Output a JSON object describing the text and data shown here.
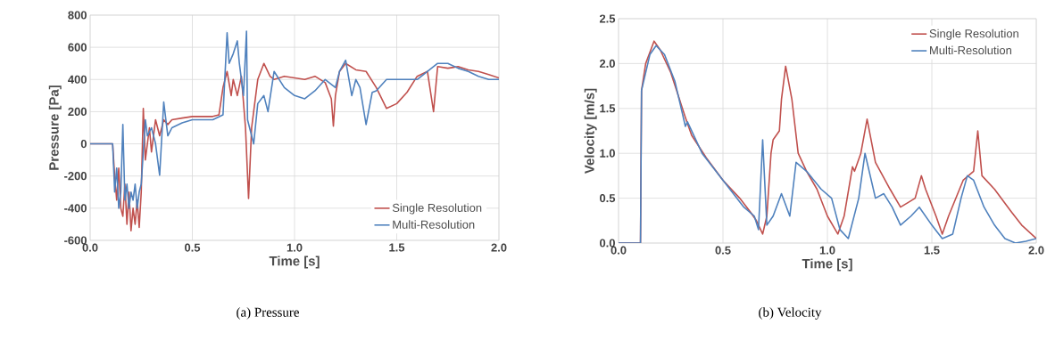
{
  "chart_data": [
    {
      "type": "line",
      "xlabel": "Time [s]",
      "ylabel": "Pressure [Pa]",
      "annotations": [
        "(a) Pressure"
      ],
      "xlim": [
        0,
        2
      ],
      "ylim": [
        -600,
        800
      ],
      "xticks": [
        {
          "value": 0,
          "label": "0.0"
        },
        {
          "value": 0.5,
          "label": "0.5"
        },
        {
          "value": 1,
          "label": "1.0"
        },
        {
          "value": 1.5,
          "label": "1.5"
        },
        {
          "value": 2,
          "label": "2.0"
        }
      ],
      "yticks": [
        -600,
        -400,
        -200,
        0,
        200,
        400,
        600,
        800
      ],
      "grid": true,
      "legend": "bottom right",
      "series": [
        {
          "name": "Single Resolution",
          "color": "#c0504d",
          "x": [
            0,
            0.11,
            0.12,
            0.13,
            0.14,
            0.15,
            0.16,
            0.17,
            0.18,
            0.19,
            0.2,
            0.21,
            0.22,
            0.23,
            0.24,
            0.25,
            0.26,
            0.27,
            0.28,
            0.29,
            0.3,
            0.32,
            0.34,
            0.36,
            0.38,
            0.4,
            0.45,
            0.5,
            0.55,
            0.6,
            0.63,
            0.65,
            0.67,
            0.69,
            0.7,
            0.72,
            0.74,
            0.76,
            0.775,
            0.79,
            0.8,
            0.82,
            0.85,
            0.88,
            0.9,
            0.95,
            1.0,
            1.05,
            1.1,
            1.15,
            1.18,
            1.19,
            1.2,
            1.22,
            1.25,
            1.3,
            1.35,
            1.4,
            1.45,
            1.5,
            1.55,
            1.6,
            1.65,
            1.68,
            1.7,
            1.75,
            1.8,
            1.85,
            1.9,
            1.95,
            2.0
          ],
          "values": [
            0,
            0,
            -200,
            -350,
            -150,
            -400,
            -450,
            -250,
            -500,
            -300,
            -540,
            -400,
            -500,
            -350,
            -520,
            -300,
            220,
            -100,
            0,
            100,
            -50,
            150,
            50,
            150,
            120,
            150,
            160,
            170,
            170,
            170,
            180,
            350,
            450,
            300,
            400,
            300,
            420,
            100,
            -340,
            100,
            200,
            400,
            500,
            420,
            400,
            420,
            410,
            400,
            420,
            380,
            280,
            110,
            300,
            450,
            500,
            460,
            450,
            350,
            220,
            250,
            320,
            420,
            450,
            200,
            480,
            470,
            480,
            460,
            450,
            430,
            410
          ]
        },
        {
          "name": "Multi-Resolution",
          "color": "#4f81bd",
          "x": [
            0,
            0.11,
            0.12,
            0.13,
            0.14,
            0.15,
            0.16,
            0.17,
            0.18,
            0.19,
            0.2,
            0.21,
            0.22,
            0.23,
            0.24,
            0.25,
            0.27,
            0.28,
            0.3,
            0.32,
            0.34,
            0.36,
            0.38,
            0.4,
            0.45,
            0.5,
            0.55,
            0.6,
            0.65,
            0.67,
            0.68,
            0.7,
            0.72,
            0.73,
            0.75,
            0.765,
            0.77,
            0.78,
            0.8,
            0.82,
            0.85,
            0.87,
            0.9,
            0.95,
            1.0,
            1.05,
            1.1,
            1.15,
            1.2,
            1.22,
            1.25,
            1.28,
            1.3,
            1.32,
            1.35,
            1.38,
            1.4,
            1.45,
            1.5,
            1.6,
            1.65,
            1.7,
            1.75,
            1.8,
            1.85,
            1.9,
            1.95,
            2.0
          ],
          "values": [
            0,
            0,
            -300,
            -150,
            -400,
            -300,
            120,
            -350,
            -250,
            -400,
            -300,
            -350,
            -250,
            -400,
            -300,
            -250,
            150,
            50,
            100,
            0,
            -195,
            260,
            50,
            100,
            130,
            150,
            150,
            150,
            180,
            690,
            500,
            560,
            640,
            500,
            300,
            700,
            150,
            100,
            0,
            250,
            300,
            200,
            450,
            350,
            300,
            280,
            330,
            400,
            350,
            450,
            520,
            300,
            400,
            350,
            120,
            320,
            330,
            400,
            400,
            400,
            450,
            500,
            500,
            470,
            450,
            420,
            400,
            400
          ]
        }
      ]
    },
    {
      "type": "line",
      "xlabel": "Time [s]",
      "ylabel": "Velocity [m/s]",
      "annotations": [
        "(b) Velocity"
      ],
      "xlim": [
        0,
        2
      ],
      "ylim": [
        0,
        2.5
      ],
      "xticks": [
        {
          "value": 0,
          "label": "0.0"
        },
        {
          "value": 0.5,
          "label": "0.5"
        },
        {
          "value": 1,
          "label": "1.0"
        },
        {
          "value": 1.5,
          "label": "1.5"
        },
        {
          "value": 2,
          "label": "2.0"
        }
      ],
      "yticks": [
        {
          "value": 0,
          "label": "0.0"
        },
        {
          "value": 0.5,
          "label": "0.5"
        },
        {
          "value": 1,
          "label": "1.0"
        },
        {
          "value": 1.5,
          "label": "1.5"
        },
        {
          "value": 2,
          "label": "2.0"
        },
        {
          "value": 2.5,
          "label": "2.5"
        }
      ],
      "grid": true,
      "legend": "top right",
      "series": [
        {
          "name": "Single Resolution",
          "color": "#c0504d",
          "x": [
            0,
            0.105,
            0.11,
            0.13,
            0.17,
            0.2,
            0.25,
            0.32,
            0.35,
            0.42,
            0.5,
            0.58,
            0.63,
            0.66,
            0.69,
            0.71,
            0.73,
            0.74,
            0.77,
            0.78,
            0.8,
            0.83,
            0.86,
            0.9,
            0.95,
            1.0,
            1.05,
            1.08,
            1.12,
            1.13,
            1.16,
            1.19,
            1.23,
            1.3,
            1.35,
            1.42,
            1.45,
            1.47,
            1.52,
            1.55,
            1.58,
            1.65,
            1.7,
            1.72,
            1.74,
            1.8,
            1.88,
            1.93,
            2.0
          ],
          "values": [
            0,
            0,
            1.7,
            2.0,
            2.25,
            2.15,
            1.9,
            1.4,
            1.2,
            0.95,
            0.7,
            0.5,
            0.35,
            0.25,
            0.1,
            0.3,
            1.0,
            1.15,
            1.25,
            1.6,
            1.97,
            1.6,
            1.0,
            0.8,
            0.6,
            0.3,
            0.1,
            0.3,
            0.85,
            0.8,
            1.0,
            1.38,
            0.9,
            0.6,
            0.4,
            0.5,
            0.75,
            0.6,
            0.3,
            0.1,
            0.3,
            0.7,
            0.8,
            1.25,
            0.75,
            0.6,
            0.35,
            0.2,
            0.05
          ]
        },
        {
          "name": "Multi-Resolution",
          "color": "#4f81bd",
          "x": [
            0,
            0.105,
            0.11,
            0.15,
            0.18,
            0.22,
            0.27,
            0.32,
            0.33,
            0.4,
            0.5,
            0.6,
            0.65,
            0.67,
            0.69,
            0.71,
            0.74,
            0.78,
            0.82,
            0.85,
            0.9,
            0.97,
            1.02,
            1.06,
            1.1,
            1.15,
            1.18,
            1.23,
            1.27,
            1.31,
            1.35,
            1.4,
            1.44,
            1.5,
            1.55,
            1.6,
            1.64,
            1.67,
            1.7,
            1.75,
            1.8,
            1.85,
            1.9,
            1.95,
            2.0
          ],
          "values": [
            0,
            0,
            1.7,
            2.1,
            2.2,
            2.1,
            1.8,
            1.3,
            1.35,
            1.0,
            0.7,
            0.4,
            0.3,
            0.15,
            1.15,
            0.2,
            0.3,
            0.55,
            0.3,
            0.9,
            0.8,
            0.6,
            0.5,
            0.15,
            0.05,
            0.5,
            1.0,
            0.5,
            0.55,
            0.4,
            0.2,
            0.3,
            0.4,
            0.2,
            0.05,
            0.1,
            0.5,
            0.75,
            0.7,
            0.4,
            0.2,
            0.05,
            0.0,
            0.02,
            0.05
          ]
        }
      ]
    }
  ]
}
